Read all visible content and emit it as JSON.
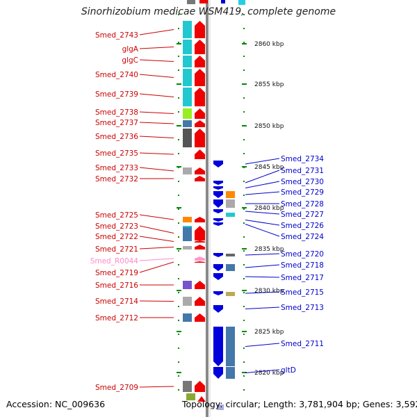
{
  "title": "Sinorhizobium medicae WSM419, complete genome",
  "footer": {
    "accession": "Accession: NC_009636",
    "topology": "Topology: circular; Length: 3,781,904 bp; Genes: 3,592"
  },
  "axis": {
    "unit": "kbp",
    "ticks": [
      {
        "label": "2860 kbp",
        "kbp": 2860
      },
      {
        "label": "2855 kbp",
        "kbp": 2855
      },
      {
        "label": "2850 kbp",
        "kbp": 2850
      },
      {
        "label": "2845 kbp",
        "kbp": 2845
      },
      {
        "label": "2840 kbp",
        "kbp": 2840
      },
      {
        "label": "2835 kbp",
        "kbp": 2835
      },
      {
        "label": "2830 kbp",
        "kbp": 2830
      },
      {
        "label": "2825 kbp",
        "kbp": 2825
      },
      {
        "label": "2820 kbp",
        "kbp": 2820
      }
    ]
  },
  "colors": {
    "forward_label": "#cc0000",
    "reverse_label": "#0000cc",
    "rna_label": "#ff88cc",
    "forward_arrow": "#ee0000",
    "reverse_arrow": "#0000dd",
    "tick": "#008800",
    "backbone": "#888888"
  },
  "forward_genes": [
    {
      "name": "Smed_2743",
      "cog_color": "#22c7d0"
    },
    {
      "name": "glgA",
      "cog_color": "#22c7d0"
    },
    {
      "name": "glgC",
      "cog_color": "#22c7d0"
    },
    {
      "name": "Smed_2740",
      "cog_color": "#22c7d0"
    },
    {
      "name": "Smed_2739",
      "cog_color": "#22c7d0"
    },
    {
      "name": "Smed_2738",
      "cog_color": "#99ee22"
    },
    {
      "name": "Smed_2737",
      "cog_color": "#4477aa"
    },
    {
      "name": "Smed_2736",
      "cog_color": "#555555"
    },
    {
      "name": "Smed_2735",
      "cog_color": ""
    },
    {
      "name": "Smed_2733",
      "cog_color": "#aaaaaa"
    },
    {
      "name": "Smed_2732",
      "cog_color": ""
    },
    {
      "name": "Smed_2725",
      "cog_color": "#ff8800"
    },
    {
      "name": "Smed_2723",
      "cog_color": "#22c7d0"
    },
    {
      "name": "Smed_2722",
      "cog_color": "#4477aa"
    },
    {
      "name": "Smed_2721",
      "cog_color": "#aaaaaa"
    },
    {
      "name": "Smed_R0044",
      "cog_color": "",
      "rna": true
    },
    {
      "name": "Smed_2719",
      "cog_color": ""
    },
    {
      "name": "Smed_2716",
      "cog_color": "#7755cc"
    },
    {
      "name": "Smed_2714",
      "cog_color": "#aaaaaa"
    },
    {
      "name": "Smed_2712",
      "cog_color": "#4477aa"
    },
    {
      "name": "Smed_2709",
      "cog_color": "#777777"
    }
  ],
  "reverse_genes": [
    {
      "name": "Smed_2734",
      "cog_color": ""
    },
    {
      "name": "Smed_2731",
      "cog_color": ""
    },
    {
      "name": "Smed_2730",
      "cog_color": ""
    },
    {
      "name": "Smed_2729",
      "cog_color": "#ff8800"
    },
    {
      "name": "Smed_2728",
      "cog_color": "#aaaaaa"
    },
    {
      "name": "Smed_2727",
      "cog_color": "#22c7d0"
    },
    {
      "name": "Smed_2726",
      "cog_color": ""
    },
    {
      "name": "Smed_2724",
      "cog_color": ""
    },
    {
      "name": "Smed_2720",
      "cog_color": "#666666"
    },
    {
      "name": "Smed_2718",
      "cog_color": "#4477aa"
    },
    {
      "name": "Smed_2717",
      "cog_color": ""
    },
    {
      "name": "Smed_2715",
      "cog_color": "#bbaa55"
    },
    {
      "name": "Smed_2713",
      "cog_color": ""
    },
    {
      "name": "Smed_2711",
      "cog_color": "#4477aa"
    },
    {
      "name": "gltD",
      "cog_color": "#4477aa"
    }
  ]
}
